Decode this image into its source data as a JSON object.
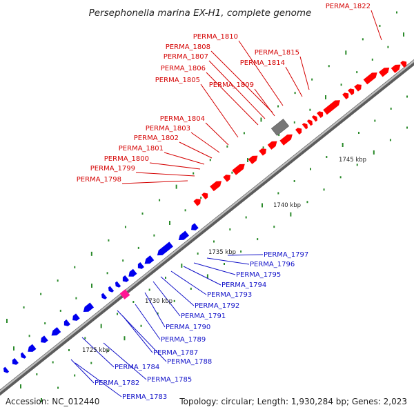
{
  "title": "Persephonella marina EX-H1, complete genome",
  "footer": {
    "accession": "Accession: NC_012440",
    "summary": "Topology: circular; Length: 1,930,284 bp; Genes: 2,023"
  },
  "kbp_labels": [
    "1725 kbp",
    "1730 kbp",
    "1735 kbp",
    "1740 kbp",
    "1745 kbp"
  ],
  "forward_gene_labels": [
    "PERMA_1822",
    "PERMA_1810",
    "PERMA_1808",
    "PERMA_1815",
    "PERMA_1807",
    "PERMA_1814",
    "PERMA_1806",
    "PERMA_1805",
    "PERMA_1809",
    "PERMA_1804",
    "PERMA_1803",
    "PERMA_1802",
    "PERMA_1801",
    "PERMA_1800",
    "PERMA_1799",
    "PERMA_1798"
  ],
  "reverse_gene_labels": [
    "PERMA_1797",
    "PERMA_1796",
    "PERMA_1795",
    "PERMA_1794",
    "PERMA_1793",
    "PERMA_1792",
    "PERMA_1791",
    "PERMA_1790",
    "PERMA_1789",
    "PERMA_1788",
    "PERMA_1787",
    "PERMA_1784",
    "PERMA_1785",
    "PERMA_1782",
    "PERMA_1783"
  ],
  "colors": {
    "forward_gene": "#ff0000",
    "reverse_gene": "#0000ee",
    "other_feature": "#777777",
    "rna_feature": "#ff1493",
    "backbone": "#9a9a9a",
    "ticks": "#2a8a2a",
    "forward_label": "#d40000",
    "reverse_label": "#1010c8"
  }
}
